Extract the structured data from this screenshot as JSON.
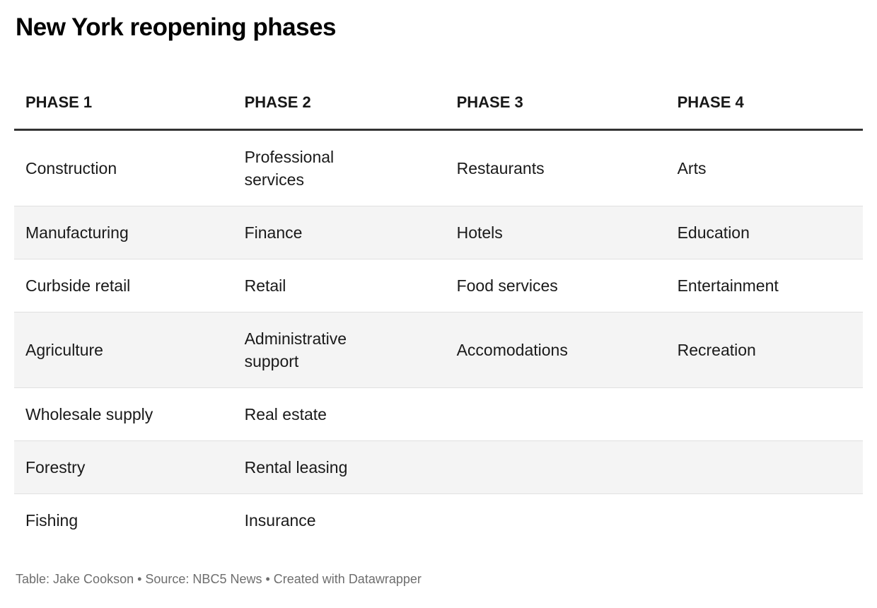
{
  "title": "New York reopening phases",
  "table": {
    "headers": [
      "PHASE 1",
      "PHASE 2",
      "PHASE 3",
      "PHASE 4"
    ],
    "rows": [
      [
        "Construction",
        "Professional\nservices",
        "Restaurants",
        "Arts"
      ],
      [
        "Manufacturing",
        "Finance",
        "Hotels",
        "Education"
      ],
      [
        "Curbside retail",
        "Retail",
        "Food services",
        "Entertainment"
      ],
      [
        "Agriculture",
        "Administrative\nsupport",
        "Accomodations",
        "Recreation"
      ],
      [
        "Wholesale supply",
        "Real estate",
        "",
        ""
      ],
      [
        "Forestry",
        "Rental leasing",
        "",
        ""
      ],
      [
        "Fishing",
        "Insurance",
        "",
        ""
      ]
    ]
  },
  "footer_text": "Table: Jake Cookson • Source: NBC5 News • Created with Datawrapper",
  "colors": {
    "header_rule": "#333333",
    "row_alt_bg": "#f4f4f4",
    "row_border": "#e0e0e0",
    "text": "#1a1a1a",
    "footer_text_color": "#6e6e6e"
  },
  "chart_data": {
    "type": "table",
    "title": "New York reopening phases",
    "columns": [
      "PHASE 1",
      "PHASE 2",
      "PHASE 3",
      "PHASE 4"
    ],
    "rows": [
      [
        "Construction",
        "Professional services",
        "Restaurants",
        "Arts"
      ],
      [
        "Manufacturing",
        "Finance",
        "Hotels",
        "Education"
      ],
      [
        "Curbside retail",
        "Retail",
        "Food services",
        "Entertainment"
      ],
      [
        "Agriculture",
        "Administrative support",
        "Accomodations",
        "Recreation"
      ],
      [
        "Wholesale supply",
        "Real estate",
        "",
        ""
      ],
      [
        "Forestry",
        "Rental leasing",
        "",
        ""
      ],
      [
        "Fishing",
        "Insurance",
        "",
        ""
      ]
    ],
    "footer": "Table: Jake Cookson • Source: NBC5 News • Created with Datawrapper",
    "layout_hints": {
      "alternating_row_shading": "even rows shaded light gray",
      "header_rule": "thick dark line under header row",
      "grid": "horizontal row separators only, no vertical lines"
    }
  }
}
